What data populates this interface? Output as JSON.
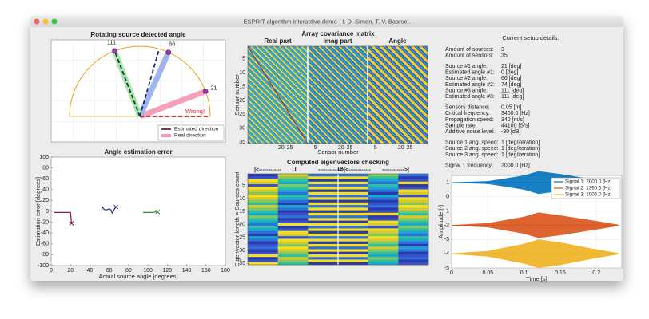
{
  "window": {
    "title": "ESPRIT algorithm interactive demo - I. D. Simon, T. V. Baarsel."
  },
  "polar": {
    "title": "Rotating source detected angle",
    "sources": [
      {
        "angle": 21,
        "estimate": 0,
        "color": "#f4a0b8"
      },
      {
        "angle": 66,
        "estimate": 74,
        "color": "#a0b4f0"
      },
      {
        "angle": 111,
        "estimate": 111,
        "color": "#a8e8a0"
      }
    ],
    "warning": "Wrong!",
    "legend": [
      "Estimated direction",
      "Real direction"
    ]
  },
  "error_plot": {
    "title": "Angle estimation error",
    "xlabel": "Actual source angle [degrees]",
    "ylabel": "Estimation error [degrees]",
    "xlim": [
      0,
      180
    ],
    "xticks": [
      0,
      20,
      40,
      60,
      80,
      100,
      120,
      140,
      160,
      180
    ],
    "ylim": [
      -100,
      100
    ],
    "yticks": [
      -100,
      -80,
      -60,
      -40,
      -20,
      0,
      20,
      40,
      60,
      80,
      100
    ],
    "series": [
      {
        "color": "#8b1a3a",
        "x": [
          3,
          5,
          10,
          15,
          20,
          21
        ],
        "values": [
          -2,
          -2,
          -2,
          -2,
          -2,
          -22
        ]
      },
      {
        "color": "#1f3a8c",
        "x": [
          52,
          53,
          55,
          58,
          60,
          62,
          63,
          65,
          67
        ],
        "values": [
          0,
          8,
          3,
          3,
          5,
          2,
          -3,
          3,
          8
        ]
      },
      {
        "color": "#2a8a2a",
        "x": [
          95,
          100,
          105,
          108,
          110
        ],
        "values": [
          -2,
          -2,
          -2,
          -1,
          -1
        ]
      }
    ]
  },
  "covariance": {
    "title": "Array covariance matrix",
    "panels": [
      {
        "label": "Real part",
        "xticks": [
          20,
          25
        ]
      },
      {
        "label": "Imag part",
        "xticks": [
          5,
          20,
          25
        ]
      },
      {
        "label": "Angle",
        "xticks": [
          5,
          20,
          25
        ]
      }
    ],
    "xlim": [
      0.5,
      35.5
    ],
    "xlabel": "Sensor number",
    "ylabel": "Sensor number",
    "ylim": [
      0.5,
      35.5
    ],
    "yticks": [
      5,
      10,
      15,
      20,
      25,
      30,
      35
    ]
  },
  "eigen": {
    "title": "Computed eigenvectors checking",
    "header": [
      "|<------------",
      "U",
      "------------>|<------------",
      "U'",
      "------------>|"
    ],
    "ylabel": "Eigenvector length = Sources count",
    "ylim": [
      0.5,
      35.5
    ],
    "yticks": [
      5,
      10,
      15,
      20,
      25,
      30,
      35
    ]
  },
  "details": {
    "heading": "Current setup details:",
    "groups": [
      [
        [
          "Amount of sources:",
          "3"
        ],
        [
          "Amount of sensors:",
          "35"
        ]
      ],
      [
        [
          "Source #1 angle:",
          "21 [deg]"
        ],
        [
          "Estimated angle #1:",
          "0 [deg]"
        ],
        [
          "Source #2 angle:",
          "66 [deg]"
        ],
        [
          "Estimated angle #2:",
          "74 [deg]"
        ],
        [
          "Source #3 angle:",
          "111 [deg]"
        ],
        [
          "Estimated angle #3:",
          "111 [deg]"
        ]
      ],
      [
        [
          "Sensors distance:",
          "0.05 [m]"
        ],
        [
          "Critical frequency:",
          "3400.0 [Hz]"
        ],
        [
          "Propagation speed:",
          "340 [m/s]"
        ],
        [
          "Sample rate:",
          "44100 [S/s]"
        ],
        [
          "Additive noise level:",
          "-30 [dB]"
        ]
      ],
      [
        [
          "Source 1 ang. speed:",
          "1 [deg/iteration]"
        ],
        [
          "Source 2 ang. speed:",
          "1 [deg/iteration]"
        ],
        [
          "Source 3 ang. speed:",
          "1 [deg/iteration]"
        ]
      ],
      [
        [
          "Signal 1 frequency:",
          "2000.0 [Hz]"
        ]
      ]
    ]
  },
  "signals": {
    "xlabel": "Time [s]",
    "ylabel": "Amplitude [-]",
    "xlim": [
      0,
      0.235
    ],
    "xticks": [
      0,
      0.05,
      0.1,
      0.15,
      0.2
    ],
    "ylim": [
      -5,
      1.5
    ],
    "yticks": [
      -5,
      -4,
      -3,
      -2,
      -1,
      0,
      1
    ],
    "x": [
      0,
      0.05,
      0.1,
      0.12,
      0.15,
      0.2,
      0.23
    ],
    "series": [
      {
        "name": "Signal 1: 2000.0 [Hz]",
        "color": "#0072bd",
        "center": 1,
        "envelope": [
          0.02,
          0.1,
          0.5,
          0.8,
          0.6,
          0.2,
          0.05
        ]
      },
      {
        "name": "Signal 2: 1360.5 [Hz]",
        "color": "#d95319",
        "center": -2,
        "envelope": [
          0.02,
          0.15,
          0.6,
          0.9,
          0.7,
          0.3,
          0.05
        ]
      },
      {
        "name": "Signal 3: 1005.0 [Hz]",
        "color": "#edb120",
        "center": -4,
        "envelope": [
          0.02,
          0.2,
          0.7,
          1.0,
          0.8,
          0.3,
          0.05
        ]
      }
    ]
  }
}
